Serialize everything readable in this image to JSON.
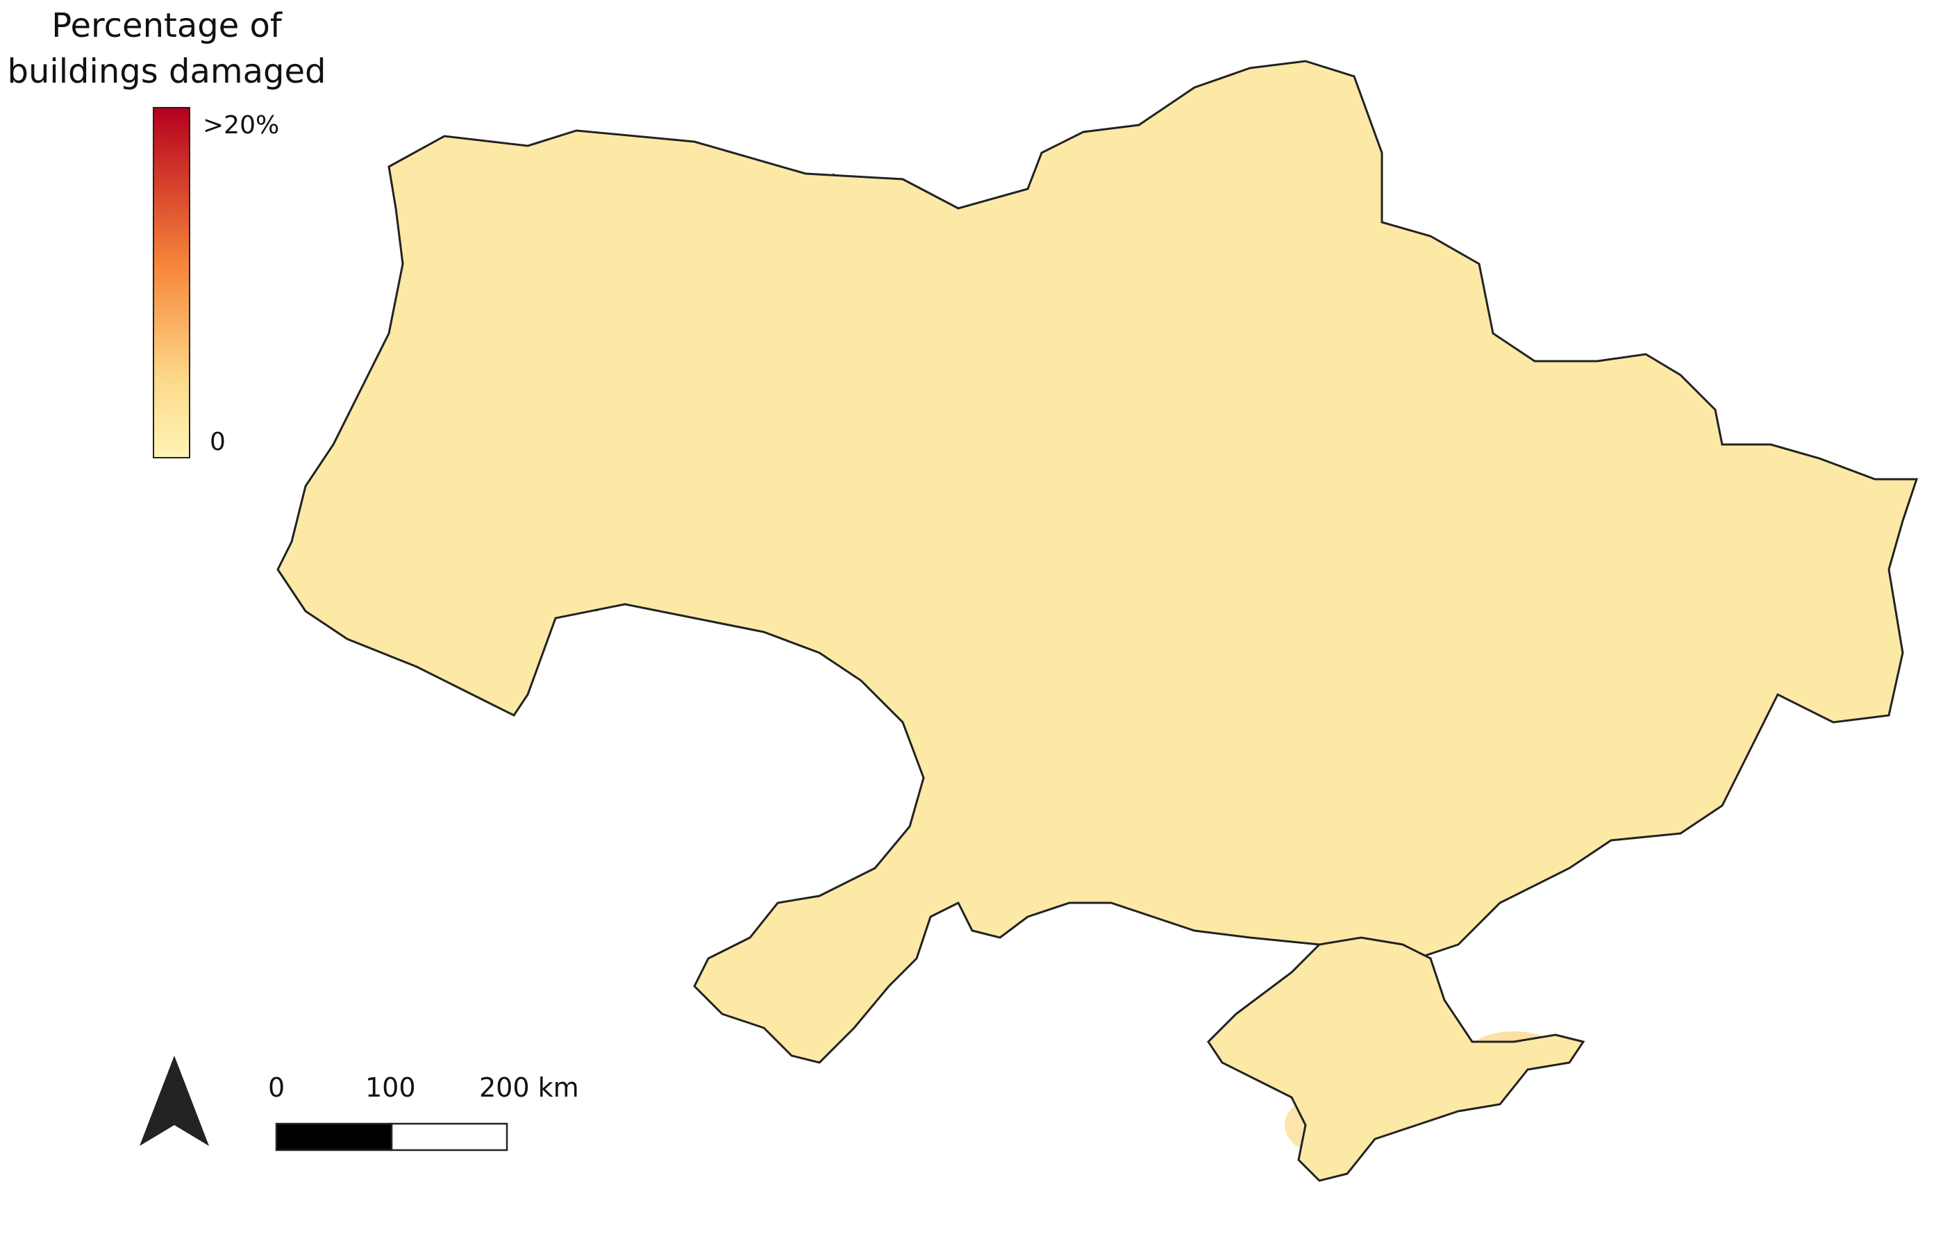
{
  "legend": {
    "title_line1": "Percentage of",
    "title_line2": "buildings damaged",
    "max_label": ">20%",
    "min_label": "0",
    "color_high": "#b5001f",
    "color_mid": "#f7863a",
    "color_low": "#fff5b5"
  },
  "scale": {
    "tick_0": "0",
    "tick_1": "100",
    "tick_2": "200 km"
  },
  "colors": {
    "base": "#fde9a6",
    "light": "#fcd98a",
    "medium": "#f8a955",
    "orange": "#f47a36",
    "red": "#d9272b",
    "darkred": "#b30021",
    "border": "#222222",
    "background": "#ffffff"
  },
  "icons": {
    "north_arrow": "north-arrow-icon"
  }
}
